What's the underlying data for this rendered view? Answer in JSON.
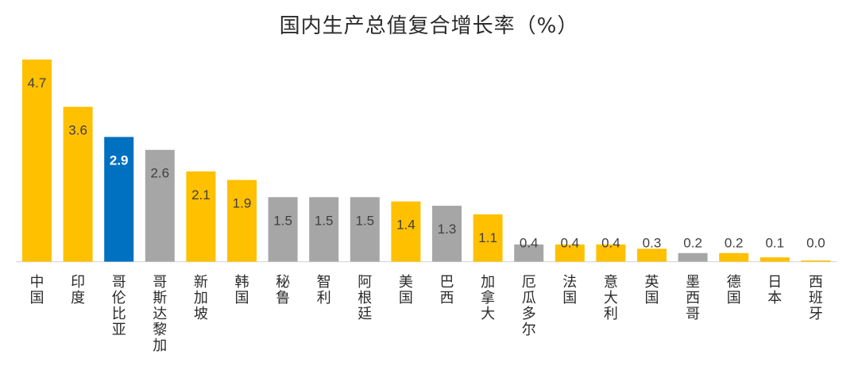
{
  "chart_data": {
    "type": "bar",
    "title": "国内生产总值复合增长率（%）",
    "xlabel": "",
    "ylabel": "",
    "ylim": [
      0,
      4.7
    ],
    "grid": false,
    "legend": "none",
    "categories": [
      "中国",
      "印度",
      "哥伦比亚",
      "哥斯达黎加",
      "新加坡",
      "韩国",
      "秘鲁",
      "智利",
      "阿根廷",
      "美国",
      "巴西",
      "加拿大",
      "厄瓜多尔",
      "法国",
      "意大利",
      "英国",
      "墨西哥",
      "德国",
      "日本",
      "西班牙"
    ],
    "values": [
      4.7,
      3.6,
      2.9,
      2.6,
      2.1,
      1.9,
      1.5,
      1.5,
      1.5,
      1.4,
      1.3,
      1.1,
      0.4,
      0.4,
      0.4,
      0.3,
      0.2,
      0.2,
      0.1,
      0.0
    ],
    "labels": [
      "4.7",
      "3.6",
      "2.9",
      "2.6",
      "2.1",
      "1.9",
      "1.5",
      "1.5",
      "1.5",
      "1.4",
      "1.3",
      "1.1",
      "0.4",
      "0.4",
      "0.4",
      "0.3",
      "0.2",
      "0.2",
      "0.1",
      "0.0"
    ],
    "bar_colors": [
      "#FFC000",
      "#FFC000",
      "#0070C0",
      "#A6A6A6",
      "#FFC000",
      "#FFC000",
      "#A6A6A6",
      "#A6A6A6",
      "#A6A6A6",
      "#FFC000",
      "#A6A6A6",
      "#FFC000",
      "#A6A6A6",
      "#FFC000",
      "#FFC000",
      "#FFC000",
      "#A6A6A6",
      "#FFC000",
      "#FFC000",
      "#FFC000"
    ],
    "highlight_index": 2
  },
  "colors": {
    "yellow": "#FFC000",
    "gray": "#A6A6A6",
    "blue": "#0070C0",
    "axis": "#D9D9D9",
    "label_text": "#404040"
  }
}
